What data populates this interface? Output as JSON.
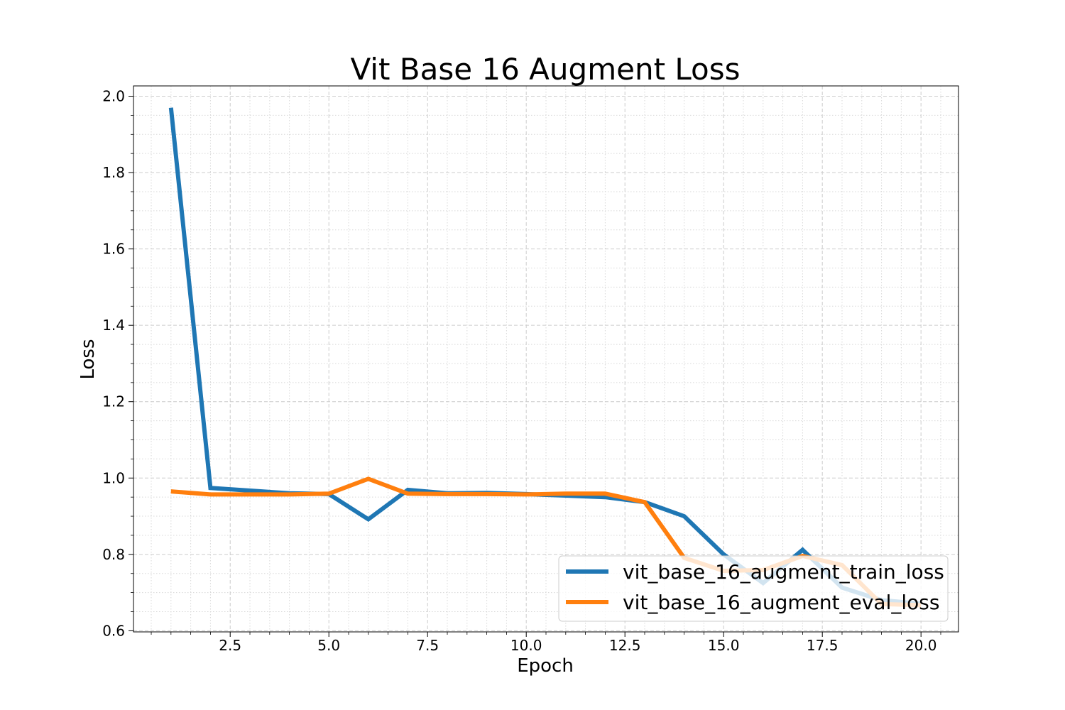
{
  "chart_data": {
    "type": "line",
    "title": "Vit Base 16 Augment Loss",
    "xlabel": "Epoch",
    "ylabel": "Loss",
    "x": [
      1,
      2,
      3,
      4,
      5,
      6,
      7,
      8,
      9,
      10,
      11,
      12,
      13,
      14,
      15,
      16,
      17,
      18,
      19,
      20
    ],
    "series": [
      {
        "name": "vit_base_16_augment_train_loss",
        "color": "#1f77b4",
        "values": [
          1.97,
          0.974,
          0.967,
          0.96,
          0.958,
          0.892,
          0.969,
          0.96,
          0.961,
          0.958,
          0.954,
          0.95,
          0.937,
          0.9,
          0.8,
          0.725,
          0.812,
          0.713,
          0.68,
          0.671
        ]
      },
      {
        "name": "vit_base_16_augment_eval_loss",
        "color": "#ff7f0e",
        "values": [
          0.965,
          0.957,
          0.957,
          0.957,
          0.959,
          0.998,
          0.959,
          0.958,
          0.958,
          0.957,
          0.959,
          0.959,
          0.937,
          0.791,
          0.757,
          0.759,
          0.796,
          0.772,
          0.67,
          0.667
        ]
      }
    ],
    "xlim": [
      0.05,
      20.95
    ],
    "ylim": [
      0.597,
      2.027
    ],
    "x_ticks": [
      2.5,
      5.0,
      7.5,
      10.0,
      12.5,
      15.0,
      17.5,
      20.0
    ],
    "x_tick_labels": [
      "2.5",
      "5.0",
      "7.5",
      "10.0",
      "12.5",
      "15.0",
      "17.5",
      "20.0"
    ],
    "y_ticks": [
      0.6,
      0.8,
      1.0,
      1.2,
      1.4,
      1.6,
      1.8,
      2.0
    ],
    "y_tick_labels": [
      "0.6",
      "0.8",
      "1.0",
      "1.2",
      "1.4",
      "1.6",
      "1.8",
      "2.0"
    ],
    "grid": true,
    "minor_grid": true,
    "legend_position": "lower-right"
  }
}
